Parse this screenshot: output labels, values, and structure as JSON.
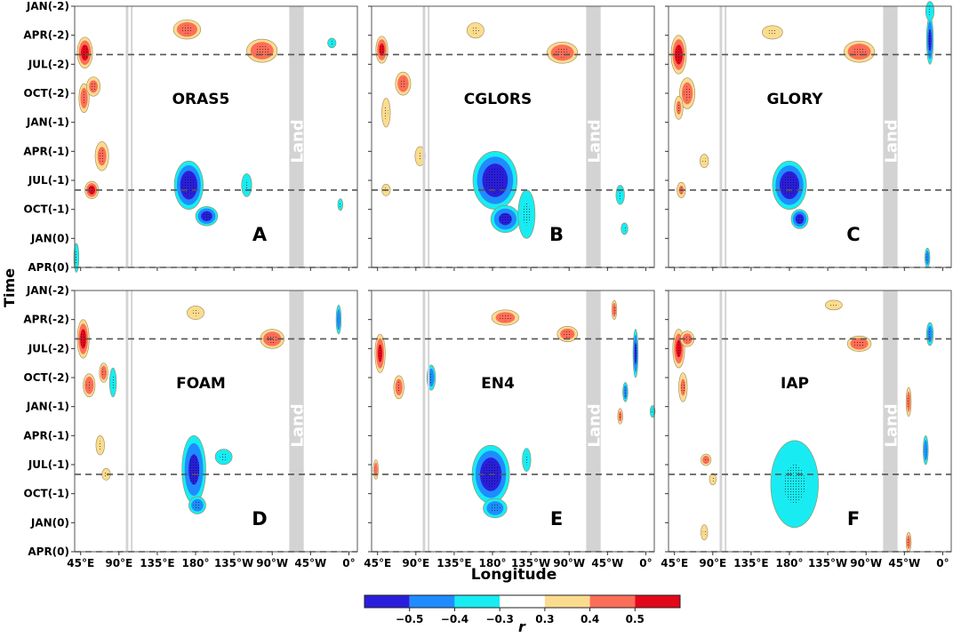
{
  "chart_data": {
    "type": "heatmap",
    "title": "",
    "xlabel": "Longitude",
    "ylabel": "Time",
    "x_ticks": [
      "45°E",
      "90°E",
      "135°E",
      "180°",
      "135°W",
      "90°W",
      "45°W",
      "0°"
    ],
    "x_tick_values": [
      45,
      90,
      135,
      180,
      225,
      270,
      315,
      360
    ],
    "xlim": [
      38,
      370
    ],
    "y_ticks": [
      "JAN(-2)",
      "APR(-2)",
      "JUL(-2)",
      "OCT(-2)",
      "JAN(-1)",
      "APR(-1)",
      "JUL(-1)",
      "OCT(-1)",
      "JAN(0)",
      "APR(0)"
    ],
    "y_tick_values": [
      0,
      3,
      6,
      9,
      12,
      15,
      18,
      21,
      24,
      27
    ],
    "ylim": [
      0,
      27
    ],
    "reference_lines": [
      {
        "axis": "y",
        "value": 5,
        "style": "dashed"
      },
      {
        "axis": "y",
        "value": 19,
        "style": "dashed"
      },
      {
        "axis": "y",
        "value": 27,
        "style": "dashed"
      }
    ],
    "land_label": "Land",
    "land_bands_lon": [
      [
        98,
        101
      ],
      [
        104,
        106
      ],
      [
        290,
        307
      ]
    ],
    "colorbar": {
      "label": "r",
      "ticks": [
        "−0.5",
        "−0.4",
        "−0.3",
        "0.3",
        "0.4",
        "0.5"
      ],
      "tick_values": [
        -0.5,
        -0.4,
        -0.3,
        0.3,
        0.4,
        0.5
      ],
      "bins": [
        {
          "from": -0.6,
          "to": -0.5,
          "color": "#2a1edc"
        },
        {
          "from": -0.5,
          "to": -0.4,
          "color": "#1e8cff"
        },
        {
          "from": -0.4,
          "to": -0.3,
          "color": "#18ecf2"
        },
        {
          "from": -0.3,
          "to": 0.3,
          "color": "#ffffff"
        },
        {
          "from": 0.3,
          "to": 0.4,
          "color": "#fbdc8f"
        },
        {
          "from": 0.4,
          "to": 0.5,
          "color": "#fd6e58"
        },
        {
          "from": 0.5,
          "to": 0.6,
          "color": "#e3071a"
        }
      ]
    },
    "panels": [
      {
        "dataset": "ORAS5",
        "letter": "A",
        "blobs": [
          {
            "lon": 50,
            "t": 4.8,
            "r": 0.52,
            "dlon": 9,
            "dt": 1.6
          },
          {
            "lon": 49,
            "t": 9.5,
            "r": 0.45,
            "dlon": 6,
            "dt": 1.5
          },
          {
            "lon": 60,
            "t": 8.3,
            "r": 0.42,
            "dlon": 8,
            "dt": 1.0
          },
          {
            "lon": 70,
            "t": 15.5,
            "r": 0.42,
            "dlon": 8,
            "dt": 1.5
          },
          {
            "lon": 58,
            "t": 19.0,
            "r": 0.52,
            "dlon": 8,
            "dt": 0.9
          },
          {
            "lon": 170,
            "t": 2.4,
            "r": 0.48,
            "dlon": 16,
            "dt": 1.0
          },
          {
            "lon": 258,
            "t": 4.6,
            "r": 0.48,
            "dlon": 18,
            "dt": 1.2
          },
          {
            "lon": 172,
            "t": 18.5,
            "r": -0.56,
            "dlon": 17,
            "dt": 2.5
          },
          {
            "lon": 193,
            "t": 21.7,
            "r": -0.52,
            "dlon": 13,
            "dt": 1.0
          },
          {
            "lon": 340,
            "t": 3.8,
            "r": -0.35,
            "dlon": 5,
            "dt": 0.5
          },
          {
            "lon": 240,
            "t": 18.5,
            "r": -0.35,
            "dlon": 6,
            "dt": 1.2
          },
          {
            "lon": 350,
            "t": 20.5,
            "r": -0.33,
            "dlon": 3,
            "dt": 0.6
          },
          {
            "lon": 40,
            "t": 26.0,
            "r": -0.35,
            "dlon": 3,
            "dt": 1.5
          }
        ]
      },
      {
        "dataset": "CGLORS",
        "letter": "B",
        "blobs": [
          {
            "lon": 50,
            "t": 4.5,
            "r": 0.5,
            "dlon": 7,
            "dt": 1.4
          },
          {
            "lon": 75,
            "t": 8.0,
            "r": 0.46,
            "dlon": 9,
            "dt": 1.2
          },
          {
            "lon": 55,
            "t": 11.0,
            "r": 0.35,
            "dlon": 5,
            "dt": 1.5
          },
          {
            "lon": 95,
            "t": 15.5,
            "r": 0.38,
            "dlon": 6,
            "dt": 1.0
          },
          {
            "lon": 55,
            "t": 19.0,
            "r": 0.38,
            "dlon": 5,
            "dt": 0.6
          },
          {
            "lon": 160,
            "t": 2.5,
            "r": 0.35,
            "dlon": 10,
            "dt": 0.8
          },
          {
            "lon": 262,
            "t": 4.8,
            "r": 0.48,
            "dlon": 18,
            "dt": 1.1
          },
          {
            "lon": 183,
            "t": 18.0,
            "r": -0.55,
            "dlon": 26,
            "dt": 3.0
          },
          {
            "lon": 195,
            "t": 22.0,
            "r": -0.5,
            "dlon": 17,
            "dt": 1.4
          },
          {
            "lon": 220,
            "t": 21.5,
            "r": -0.32,
            "dlon": 10,
            "dt": 2.5
          },
          {
            "lon": 330,
            "t": 19.5,
            "r": -0.35,
            "dlon": 5,
            "dt": 1.0
          },
          {
            "lon": 335,
            "t": 23.0,
            "r": -0.33,
            "dlon": 4,
            "dt": 0.6
          }
        ]
      },
      {
        "dataset": "GLORY",
        "letter": "C",
        "blobs": [
          {
            "lon": 50,
            "t": 5.0,
            "r": 0.52,
            "dlon": 9,
            "dt": 2.0
          },
          {
            "lon": 60,
            "t": 9.0,
            "r": 0.45,
            "dlon": 9,
            "dt": 1.6
          },
          {
            "lon": 50,
            "t": 10.5,
            "r": 0.4,
            "dlon": 5,
            "dt": 1.2
          },
          {
            "lon": 80,
            "t": 16.0,
            "r": 0.38,
            "dlon": 5,
            "dt": 0.7
          },
          {
            "lon": 53,
            "t": 19.0,
            "r": 0.4,
            "dlon": 5,
            "dt": 0.8
          },
          {
            "lon": 160,
            "t": 2.7,
            "r": 0.35,
            "dlon": 12,
            "dt": 0.7
          },
          {
            "lon": 262,
            "t": 4.7,
            "r": 0.48,
            "dlon": 18,
            "dt": 1.1
          },
          {
            "lon": 180,
            "t": 18.5,
            "r": -0.55,
            "dlon": 20,
            "dt": 2.5
          },
          {
            "lon": 192,
            "t": 22.0,
            "r": -0.52,
            "dlon": 10,
            "dt": 1.0
          },
          {
            "lon": 345,
            "t": 3.5,
            "r": -0.5,
            "dlon": 4,
            "dt": 2.5
          },
          {
            "lon": 345,
            "t": 0.5,
            "r": -0.35,
            "dlon": 5,
            "dt": 1.0
          },
          {
            "lon": 342,
            "t": 26.0,
            "r": -0.45,
            "dlon": 3,
            "dt": 1.0
          }
        ]
      },
      {
        "dataset": "FOAM",
        "letter": "D",
        "blobs": [
          {
            "lon": 48,
            "t": 5.0,
            "r": 0.52,
            "dlon": 7,
            "dt": 2.0
          },
          {
            "lon": 55,
            "t": 9.8,
            "r": 0.48,
            "dlon": 7,
            "dt": 1.2
          },
          {
            "lon": 72,
            "t": 8.5,
            "r": 0.46,
            "dlon": 5,
            "dt": 1.0
          },
          {
            "lon": 68,
            "t": 16.0,
            "r": 0.35,
            "dlon": 5,
            "dt": 1.0
          },
          {
            "lon": 75,
            "t": 19.0,
            "r": 0.36,
            "dlon": 5,
            "dt": 0.6
          },
          {
            "lon": 270,
            "t": 5.0,
            "r": 0.48,
            "dlon": 14,
            "dt": 1.0
          },
          {
            "lon": 180,
            "t": 2.3,
            "r": 0.34,
            "dlon": 10,
            "dt": 0.7
          },
          {
            "lon": 178,
            "t": 18.5,
            "r": -0.5,
            "dlon": 14,
            "dt": 3.5
          },
          {
            "lon": 182,
            "t": 22.2,
            "r": -0.45,
            "dlon": 10,
            "dt": 0.9
          },
          {
            "lon": 213,
            "t": 17.2,
            "r": -0.33,
            "dlon": 10,
            "dt": 0.8
          },
          {
            "lon": 83,
            "t": 9.5,
            "r": -0.35,
            "dlon": 4,
            "dt": 1.5
          },
          {
            "lon": 348,
            "t": 3.0,
            "r": -0.45,
            "dlon": 3,
            "dt": 1.5
          }
        ]
      },
      {
        "dataset": "EN4",
        "letter": "E",
        "blobs": [
          {
            "lon": 48,
            "t": 6.5,
            "r": 0.5,
            "dlon": 6,
            "dt": 2.0
          },
          {
            "lon": 70,
            "t": 10.0,
            "r": 0.45,
            "dlon": 6,
            "dt": 1.2
          },
          {
            "lon": 43,
            "t": 18.5,
            "r": 0.45,
            "dlon": 3,
            "dt": 1.0
          },
          {
            "lon": 195,
            "t": 2.8,
            "r": 0.45,
            "dlon": 16,
            "dt": 0.8
          },
          {
            "lon": 268,
            "t": 4.5,
            "r": 0.45,
            "dlon": 12,
            "dt": 0.8
          },
          {
            "lon": 323,
            "t": 2.0,
            "r": 0.46,
            "dlon": 3,
            "dt": 1.0
          },
          {
            "lon": 330,
            "t": 13.0,
            "r": 0.43,
            "dlon": 3,
            "dt": 0.8
          },
          {
            "lon": 178,
            "t": 19.0,
            "r": -0.55,
            "dlon": 22,
            "dt": 3.0
          },
          {
            "lon": 183,
            "t": 22.5,
            "r": -0.45,
            "dlon": 14,
            "dt": 1.0
          },
          {
            "lon": 108,
            "t": 9.0,
            "r": -0.45,
            "dlon": 5,
            "dt": 1.3
          },
          {
            "lon": 348,
            "t": 6.5,
            "r": -0.5,
            "dlon": 3,
            "dt": 2.5
          },
          {
            "lon": 336,
            "t": 10.5,
            "r": -0.45,
            "dlon": 3,
            "dt": 1.0
          },
          {
            "lon": 220,
            "t": 17.5,
            "r": -0.32,
            "dlon": 5,
            "dt": 1.2
          },
          {
            "lon": 368,
            "t": 12.5,
            "r": -0.35,
            "dlon": 3,
            "dt": 0.6
          }
        ]
      },
      {
        "dataset": "IAP",
        "letter": "F",
        "blobs": [
          {
            "lon": 50,
            "t": 6.0,
            "r": 0.5,
            "dlon": 7,
            "dt": 2.0
          },
          {
            "lon": 60,
            "t": 5.0,
            "r": 0.45,
            "dlon": 8,
            "dt": 0.8
          },
          {
            "lon": 55,
            "t": 10.0,
            "r": 0.4,
            "dlon": 5,
            "dt": 1.5
          },
          {
            "lon": 82,
            "t": 17.5,
            "r": 0.45,
            "dlon": 6,
            "dt": 0.6
          },
          {
            "lon": 90,
            "t": 19.5,
            "r": 0.36,
            "dlon": 4,
            "dt": 0.6
          },
          {
            "lon": 80,
            "t": 25.0,
            "r": 0.36,
            "dlon": 4,
            "dt": 0.8
          },
          {
            "lon": 262,
            "t": 5.5,
            "r": 0.48,
            "dlon": 14,
            "dt": 0.8
          },
          {
            "lon": 232,
            "t": 1.5,
            "r": 0.33,
            "dlon": 10,
            "dt": 0.5
          },
          {
            "lon": 320,
            "t": 11.5,
            "r": 0.45,
            "dlon": 3,
            "dt": 1.5
          },
          {
            "lon": 320,
            "t": 26.0,
            "r": 0.45,
            "dlon": 3,
            "dt": 1.0
          },
          {
            "lon": 180,
            "t": 19.5,
            "r": -0.52,
            "dlon": 18,
            "dt": 3.0
          },
          {
            "lon": 186,
            "t": 20.0,
            "r": -0.32,
            "dlon": 28,
            "dt": 4.5
          },
          {
            "lon": 345,
            "t": 4.5,
            "r": -0.45,
            "dlon": 4,
            "dt": 1.2
          },
          {
            "lon": 340,
            "t": 16.5,
            "r": -0.45,
            "dlon": 3,
            "dt": 1.5
          }
        ]
      }
    ]
  }
}
